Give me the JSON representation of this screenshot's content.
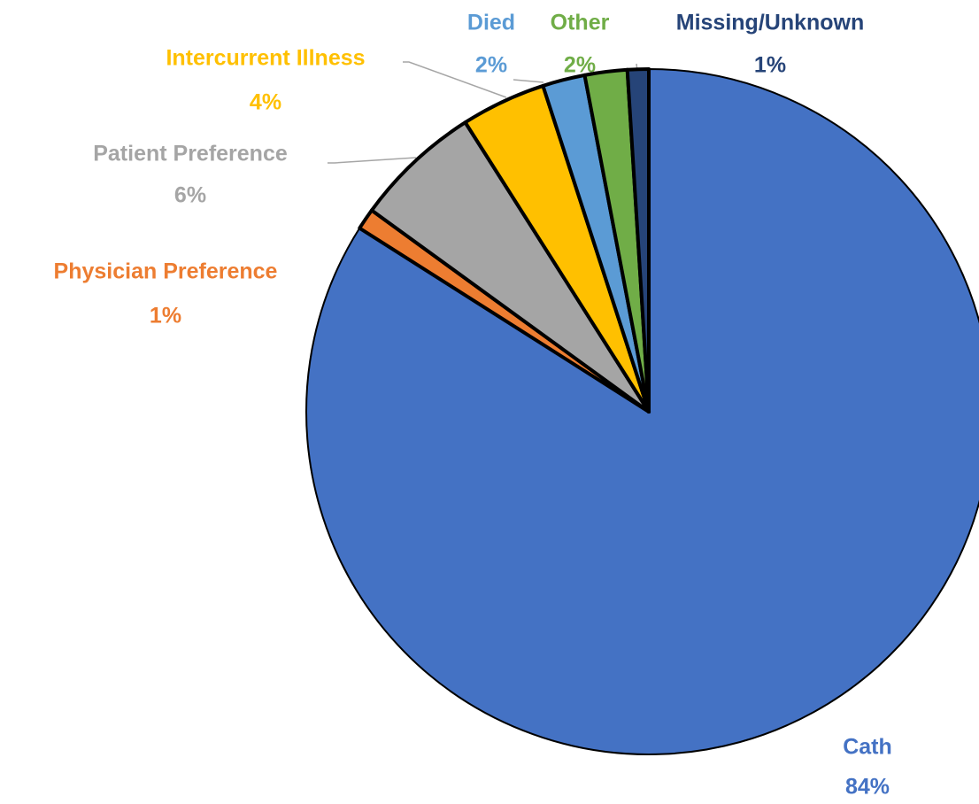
{
  "chart_data": {
    "type": "pie",
    "categories": [
      "Cath",
      "Physician Preference",
      "Patient Preference",
      "Intercurrent Illness",
      "Died",
      "Other",
      "Missing/Unknown"
    ],
    "values": [
      84,
      1,
      6,
      4,
      2,
      2,
      1
    ],
    "value_labels": [
      "84%",
      "1%",
      "6%",
      "4%",
      "2%",
      "2%",
      "1%"
    ],
    "colors": [
      "#4472c4",
      "#ed7d31",
      "#a5a5a5",
      "#ffc000",
      "#5b9bd5",
      "#70ad47",
      "#264478"
    ]
  }
}
